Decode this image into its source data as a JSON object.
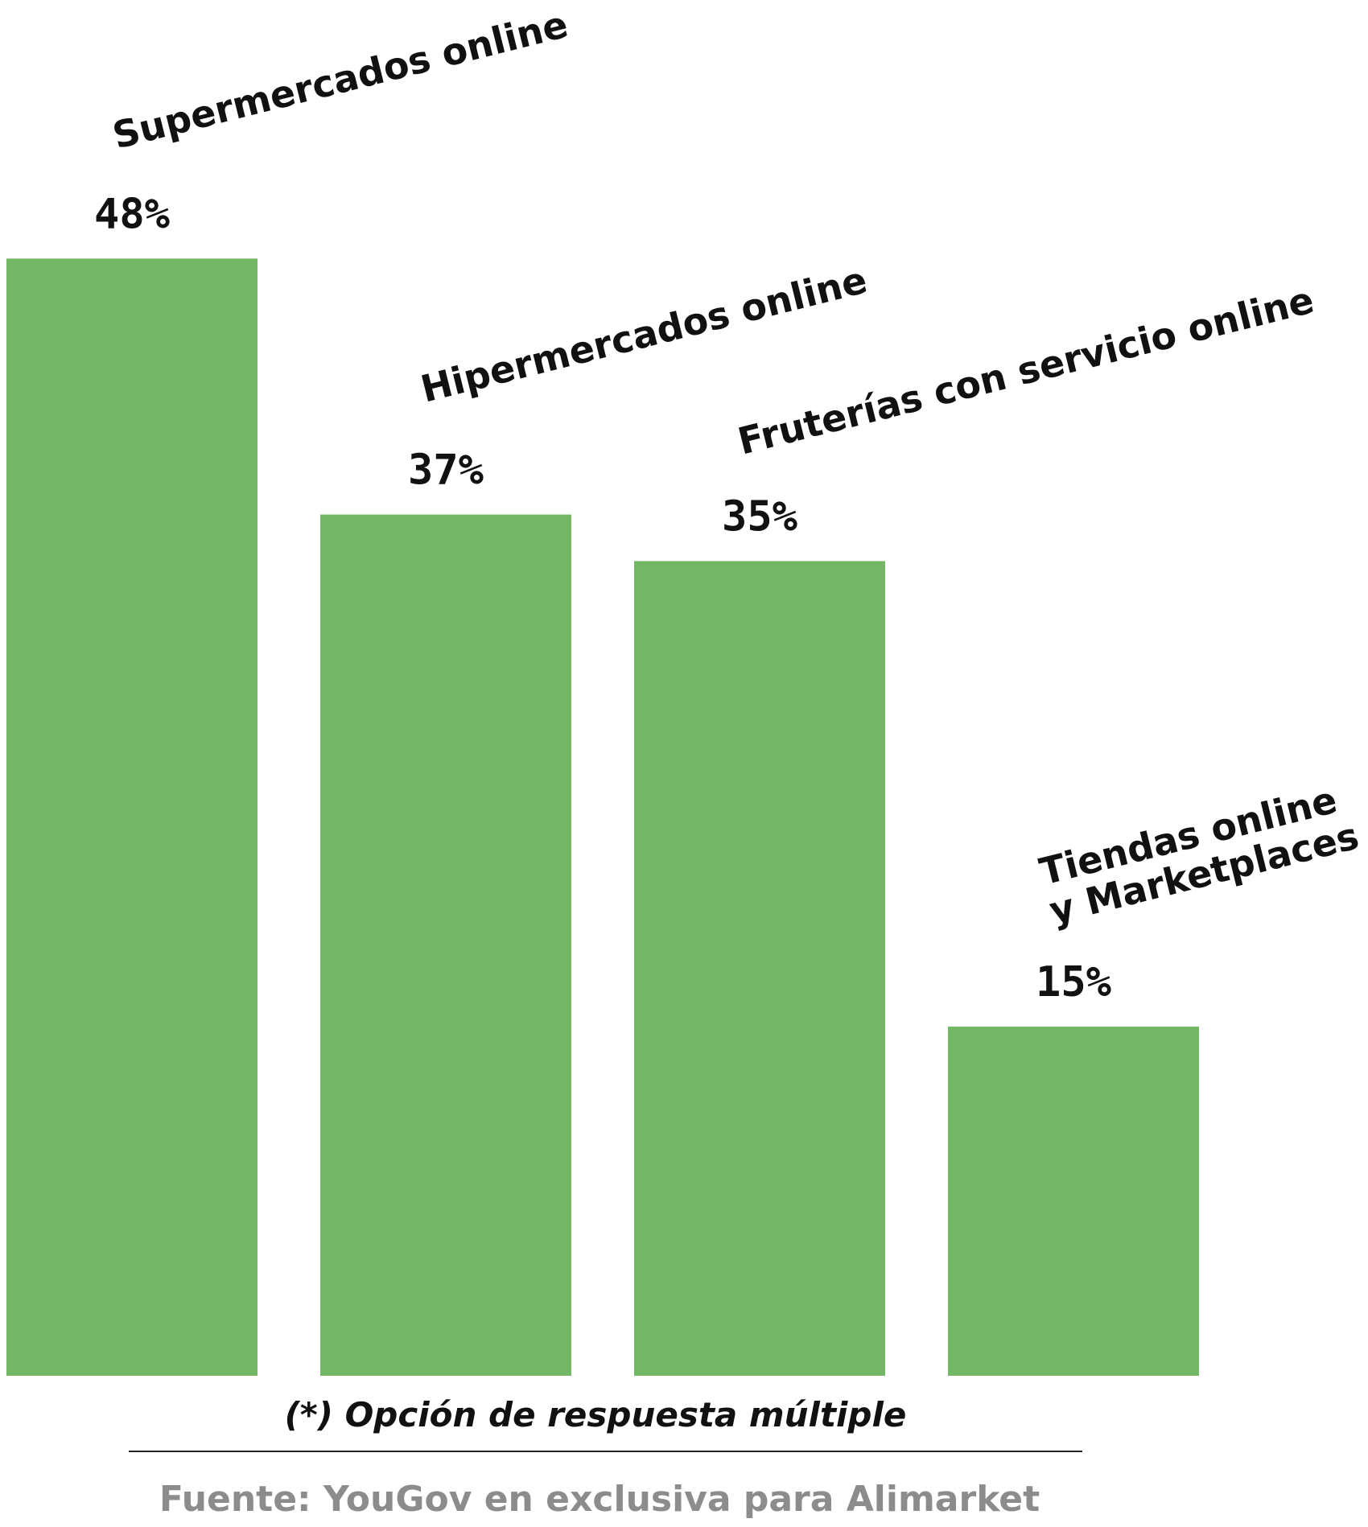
{
  "chart_data": {
    "type": "bar",
    "categories": [
      [
        "Supermercados online"
      ],
      [
        "Hipermercados online"
      ],
      [
        "Fruterías con servicio online"
      ],
      [
        "Tiendas online",
        "y Marketplaces"
      ]
    ],
    "values": [
      48,
      37,
      35,
      15
    ],
    "value_labels": [
      "48%",
      "37%",
      "35%",
      "15%"
    ],
    "bar_color": "#72b666",
    "ylim": [
      0,
      50
    ],
    "grid": false,
    "note": "(*) Opción de respuesta múltiple",
    "source": "Fuente: YouGov en exclusiva para Alimarket"
  }
}
